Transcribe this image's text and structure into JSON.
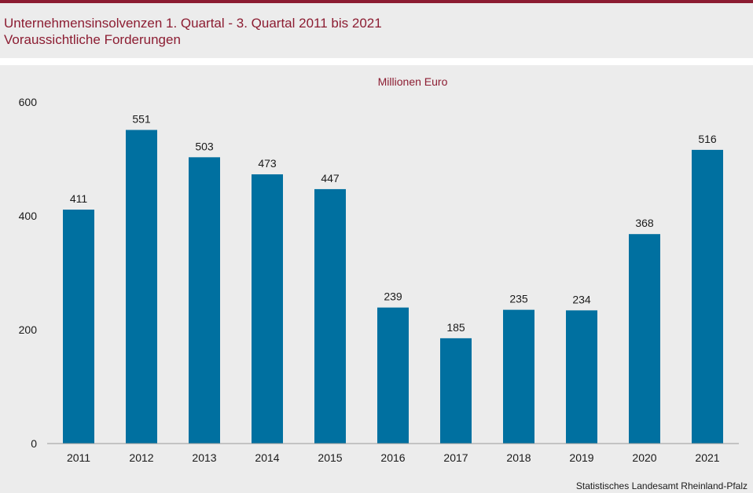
{
  "header": {
    "title": "Unternehmensinsolvenzen 1. Quartal - 3. Quartal 2011 bis 2021",
    "subtitle": "Voraussichtliche Forderungen"
  },
  "colors": {
    "accent": "#8c1d32",
    "bar": "#0070a0",
    "background": "#ececec"
  },
  "chart_data": {
    "type": "bar",
    "title": "Unternehmensinsolvenzen 1. Quartal - 3. Quartal 2011 bis 2021",
    "subtitle": "Voraussichtliche Forderungen",
    "unit_label": "Millionen Euro",
    "categories": [
      "2011",
      "2012",
      "2013",
      "2014",
      "2015",
      "2016",
      "2017",
      "2018",
      "2019",
      "2020",
      "2021"
    ],
    "values": [
      411,
      551,
      503,
      473,
      447,
      239,
      185,
      235,
      234,
      368,
      516
    ],
    "ylim": [
      0,
      600
    ],
    "yticks": [
      0,
      200,
      400,
      600
    ],
    "xlabel": "",
    "ylabel": "",
    "grid": false,
    "show_data_labels": true
  },
  "footer": {
    "source": "Statistisches Landesamt Rheinland-Pfalz"
  }
}
